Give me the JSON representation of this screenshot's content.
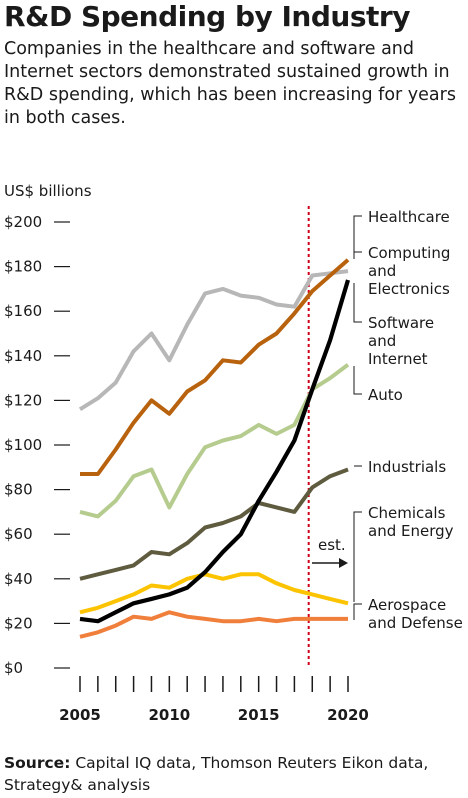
{
  "header": {
    "title": "R&D Spending by Industry",
    "subtitle": "Companies in the healthcare and software and Internet sectors demonstrated sustained growth in R&D spending, which has been increasing for years in both cases."
  },
  "source": {
    "label": "Source:",
    "text": " Capital IQ data, Thomson Reuters Eikon data, Strategy& analysis"
  },
  "chart_data": {
    "type": "line",
    "ylabel": "US$ billions",
    "ylim": [
      0,
      200
    ],
    "xlim": [
      2005,
      2020
    ],
    "y_ticks": [
      "$0",
      "$20",
      "$40",
      "$60",
      "$80",
      "$100",
      "$120",
      "$140",
      "$160",
      "$180",
      "$200"
    ],
    "x_tick_labels": [
      "2005",
      "2010",
      "2015",
      "2020"
    ],
    "estimate_marker": {
      "x": 2017.8,
      "label": "est.",
      "color": "#d0021b"
    },
    "x": [
      2005,
      2006,
      2007,
      2008,
      2009,
      2010,
      2011,
      2012,
      2013,
      2014,
      2015,
      2016,
      2017,
      2018,
      2019,
      2020
    ],
    "series": [
      {
        "name": "Healthcare",
        "color": "#b7b7b7",
        "values": [
          116,
          121,
          128,
          142,
          150,
          138,
          154,
          168,
          170,
          167,
          166,
          163,
          162,
          176,
          177,
          178
        ]
      },
      {
        "name": "Computing and Electronics",
        "color": "#b8620e",
        "values": [
          87,
          87,
          98,
          110,
          120,
          114,
          124,
          129,
          138,
          137,
          145,
          150,
          159,
          169,
          176,
          183
        ]
      },
      {
        "name": "Software and Internet",
        "color": "#000000",
        "values": [
          22,
          21,
          25,
          29,
          31,
          33,
          36,
          43,
          52,
          60,
          75,
          88,
          102,
          125,
          147,
          174
        ]
      },
      {
        "name": "Auto",
        "color": "#b5cc8e",
        "values": [
          70,
          68,
          75,
          86,
          89,
          72,
          87,
          99,
          102,
          104,
          109,
          105,
          109,
          125,
          130,
          136
        ]
      },
      {
        "name": "Industrials",
        "color": "#5e5b3f",
        "values": [
          40,
          42,
          44,
          46,
          52,
          51,
          56,
          63,
          65,
          68,
          74,
          72,
          70,
          81,
          86,
          89
        ]
      },
      {
        "name": "Chemicals and Energy",
        "color": "#fcc400",
        "values": [
          25,
          27,
          30,
          33,
          37,
          36,
          40,
          42,
          40,
          42,
          42,
          38,
          35,
          33,
          31,
          29
        ]
      },
      {
        "name": "Aerospace and Defense",
        "color": "#f07f3c",
        "values": [
          14,
          16,
          19,
          23,
          22,
          25,
          23,
          22,
          21,
          21,
          22,
          21,
          22,
          22,
          22,
          22
        ]
      }
    ]
  }
}
